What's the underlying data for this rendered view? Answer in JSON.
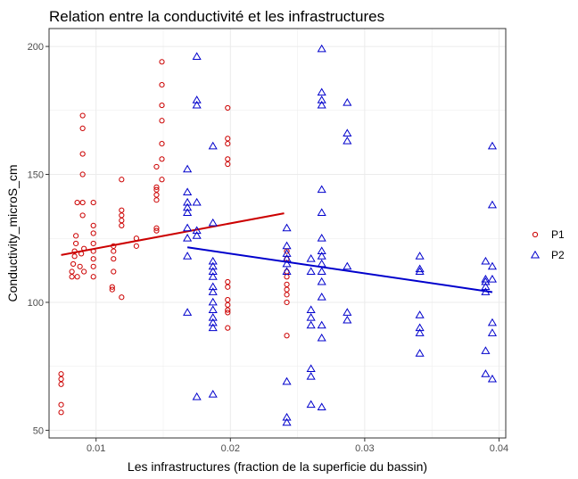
{
  "chart_data": {
    "type": "scatter",
    "title": "Relation entre la conductivité et les infrastructures",
    "xlabel": "Les infrastructures (fraction de la superficie du bassin)",
    "ylabel": "Conductivity_microS_cm",
    "xlim": [
      0.0065,
      0.0405
    ],
    "ylim": [
      47,
      207
    ],
    "x_ticks": [
      0.01,
      0.02,
      0.03,
      0.04
    ],
    "x_tick_labels": [
      "0.01",
      "0.02",
      "0.03",
      "0.04"
    ],
    "y_ticks": [
      50,
      100,
      150,
      200
    ],
    "y_tick_labels": [
      "50",
      "100",
      "150",
      "200"
    ],
    "grid": true,
    "legend_position": "right",
    "series": [
      {
        "name": "P1",
        "marker": "circle",
        "color": "#cc0000",
        "points": [
          [
            0.0074,
            72
          ],
          [
            0.0074,
            70
          ],
          [
            0.0074,
            68
          ],
          [
            0.0074,
            60
          ],
          [
            0.0074,
            57
          ],
          [
            0.0082,
            110
          ],
          [
            0.0082,
            112
          ],
          [
            0.0083,
            115
          ],
          [
            0.0084,
            118
          ],
          [
            0.0084,
            120
          ],
          [
            0.0085,
            123
          ],
          [
            0.0085,
            126
          ],
          [
            0.0086,
            139
          ],
          [
            0.0086,
            110
          ],
          [
            0.0088,
            114
          ],
          [
            0.0089,
            119
          ],
          [
            0.009,
            134
          ],
          [
            0.009,
            139
          ],
          [
            0.009,
            150
          ],
          [
            0.009,
            158
          ],
          [
            0.009,
            168
          ],
          [
            0.009,
            173
          ],
          [
            0.0091,
            112
          ],
          [
            0.0091,
            121
          ],
          [
            0.0098,
            110
          ],
          [
            0.0098,
            114
          ],
          [
            0.0098,
            117
          ],
          [
            0.0098,
            120
          ],
          [
            0.0098,
            123
          ],
          [
            0.0098,
            127
          ],
          [
            0.0098,
            130
          ],
          [
            0.0098,
            139
          ],
          [
            0.0112,
            106
          ],
          [
            0.0112,
            105
          ],
          [
            0.0113,
            112
          ],
          [
            0.0113,
            117
          ],
          [
            0.0113,
            120
          ],
          [
            0.0113,
            122
          ],
          [
            0.0119,
            102
          ],
          [
            0.0119,
            130
          ],
          [
            0.0119,
            132
          ],
          [
            0.0119,
            134
          ],
          [
            0.0119,
            136
          ],
          [
            0.0119,
            148
          ],
          [
            0.013,
            122
          ],
          [
            0.013,
            125
          ],
          [
            0.0145,
            128
          ],
          [
            0.0145,
            129
          ],
          [
            0.0145,
            140
          ],
          [
            0.0145,
            142
          ],
          [
            0.0145,
            144
          ],
          [
            0.0145,
            145
          ],
          [
            0.0145,
            153
          ],
          [
            0.0149,
            194
          ],
          [
            0.0149,
            185
          ],
          [
            0.0149,
            177
          ],
          [
            0.0149,
            171
          ],
          [
            0.0149,
            162
          ],
          [
            0.0149,
            156
          ],
          [
            0.0149,
            148
          ],
          [
            0.0198,
            176
          ],
          [
            0.0198,
            164
          ],
          [
            0.0198,
            162
          ],
          [
            0.0198,
            156
          ],
          [
            0.0198,
            154
          ],
          [
            0.0198,
            108
          ],
          [
            0.0198,
            106
          ],
          [
            0.0198,
            101
          ],
          [
            0.0198,
            99
          ],
          [
            0.0198,
            97
          ],
          [
            0.0198,
            96
          ],
          [
            0.0198,
            90
          ],
          [
            0.0242,
            120
          ],
          [
            0.0242,
            117
          ],
          [
            0.0242,
            112
          ],
          [
            0.0242,
            110
          ],
          [
            0.0242,
            107
          ],
          [
            0.0242,
            105
          ],
          [
            0.0242,
            103
          ],
          [
            0.0242,
            100
          ],
          [
            0.0242,
            87
          ]
        ],
        "fit": {
          "x": [
            0.0074,
            0.024
          ],
          "y": [
            118.5,
            134.8
          ]
        }
      },
      {
        "name": "P2",
        "marker": "triangle",
        "color": "#0000cc",
        "points": [
          [
            0.0168,
            152
          ],
          [
            0.0168,
            143
          ],
          [
            0.0168,
            139
          ],
          [
            0.0168,
            137
          ],
          [
            0.0168,
            135
          ],
          [
            0.0168,
            129
          ],
          [
            0.0168,
            125
          ],
          [
            0.0168,
            118
          ],
          [
            0.0168,
            96
          ],
          [
            0.0175,
            196
          ],
          [
            0.0175,
            179
          ],
          [
            0.0175,
            177
          ],
          [
            0.0175,
            139
          ],
          [
            0.0175,
            128
          ],
          [
            0.0175,
            126
          ],
          [
            0.0175,
            63
          ],
          [
            0.0187,
            161
          ],
          [
            0.0187,
            131
          ],
          [
            0.0187,
            116
          ],
          [
            0.0187,
            114
          ],
          [
            0.0187,
            112
          ],
          [
            0.0187,
            110
          ],
          [
            0.0187,
            106
          ],
          [
            0.0187,
            104
          ],
          [
            0.0187,
            100
          ],
          [
            0.0187,
            97
          ],
          [
            0.0187,
            94
          ],
          [
            0.0187,
            92
          ],
          [
            0.0187,
            90
          ],
          [
            0.0187,
            64
          ],
          [
            0.0242,
            129
          ],
          [
            0.0242,
            122
          ],
          [
            0.0242,
            119
          ],
          [
            0.0242,
            117
          ],
          [
            0.0242,
            115
          ],
          [
            0.0242,
            112
          ],
          [
            0.0242,
            69
          ],
          [
            0.0242,
            55
          ],
          [
            0.0242,
            53
          ],
          [
            0.026,
            117
          ],
          [
            0.026,
            112
          ],
          [
            0.026,
            97
          ],
          [
            0.026,
            94
          ],
          [
            0.026,
            91
          ],
          [
            0.026,
            74
          ],
          [
            0.026,
            71
          ],
          [
            0.026,
            60
          ],
          [
            0.0268,
            199
          ],
          [
            0.0268,
            182
          ],
          [
            0.0268,
            179
          ],
          [
            0.0268,
            177
          ],
          [
            0.0268,
            144
          ],
          [
            0.0268,
            135
          ],
          [
            0.0268,
            125
          ],
          [
            0.0268,
            120
          ],
          [
            0.0268,
            118
          ],
          [
            0.0268,
            115
          ],
          [
            0.0268,
            112
          ],
          [
            0.0268,
            108
          ],
          [
            0.0268,
            102
          ],
          [
            0.0268,
            91
          ],
          [
            0.0268,
            86
          ],
          [
            0.0268,
            59
          ],
          [
            0.0287,
            178
          ],
          [
            0.0287,
            166
          ],
          [
            0.0287,
            163
          ],
          [
            0.0287,
            114
          ],
          [
            0.0287,
            96
          ],
          [
            0.0287,
            93
          ],
          [
            0.0341,
            118
          ],
          [
            0.0341,
            113
          ],
          [
            0.0341,
            112
          ],
          [
            0.0341,
            95
          ],
          [
            0.0341,
            90
          ],
          [
            0.0341,
            88
          ],
          [
            0.0341,
            80
          ],
          [
            0.039,
            116
          ],
          [
            0.039,
            109
          ],
          [
            0.039,
            108
          ],
          [
            0.039,
            106
          ],
          [
            0.039,
            104
          ],
          [
            0.039,
            81
          ],
          [
            0.039,
            72
          ],
          [
            0.0395,
            161
          ],
          [
            0.0395,
            138
          ],
          [
            0.0395,
            114
          ],
          [
            0.0395,
            109
          ],
          [
            0.0395,
            92
          ],
          [
            0.0395,
            88
          ],
          [
            0.0395,
            70
          ]
        ],
        "fit": {
          "x": [
            0.0168,
            0.0395
          ],
          "y": [
            121.5,
            104
          ]
        }
      }
    ]
  }
}
